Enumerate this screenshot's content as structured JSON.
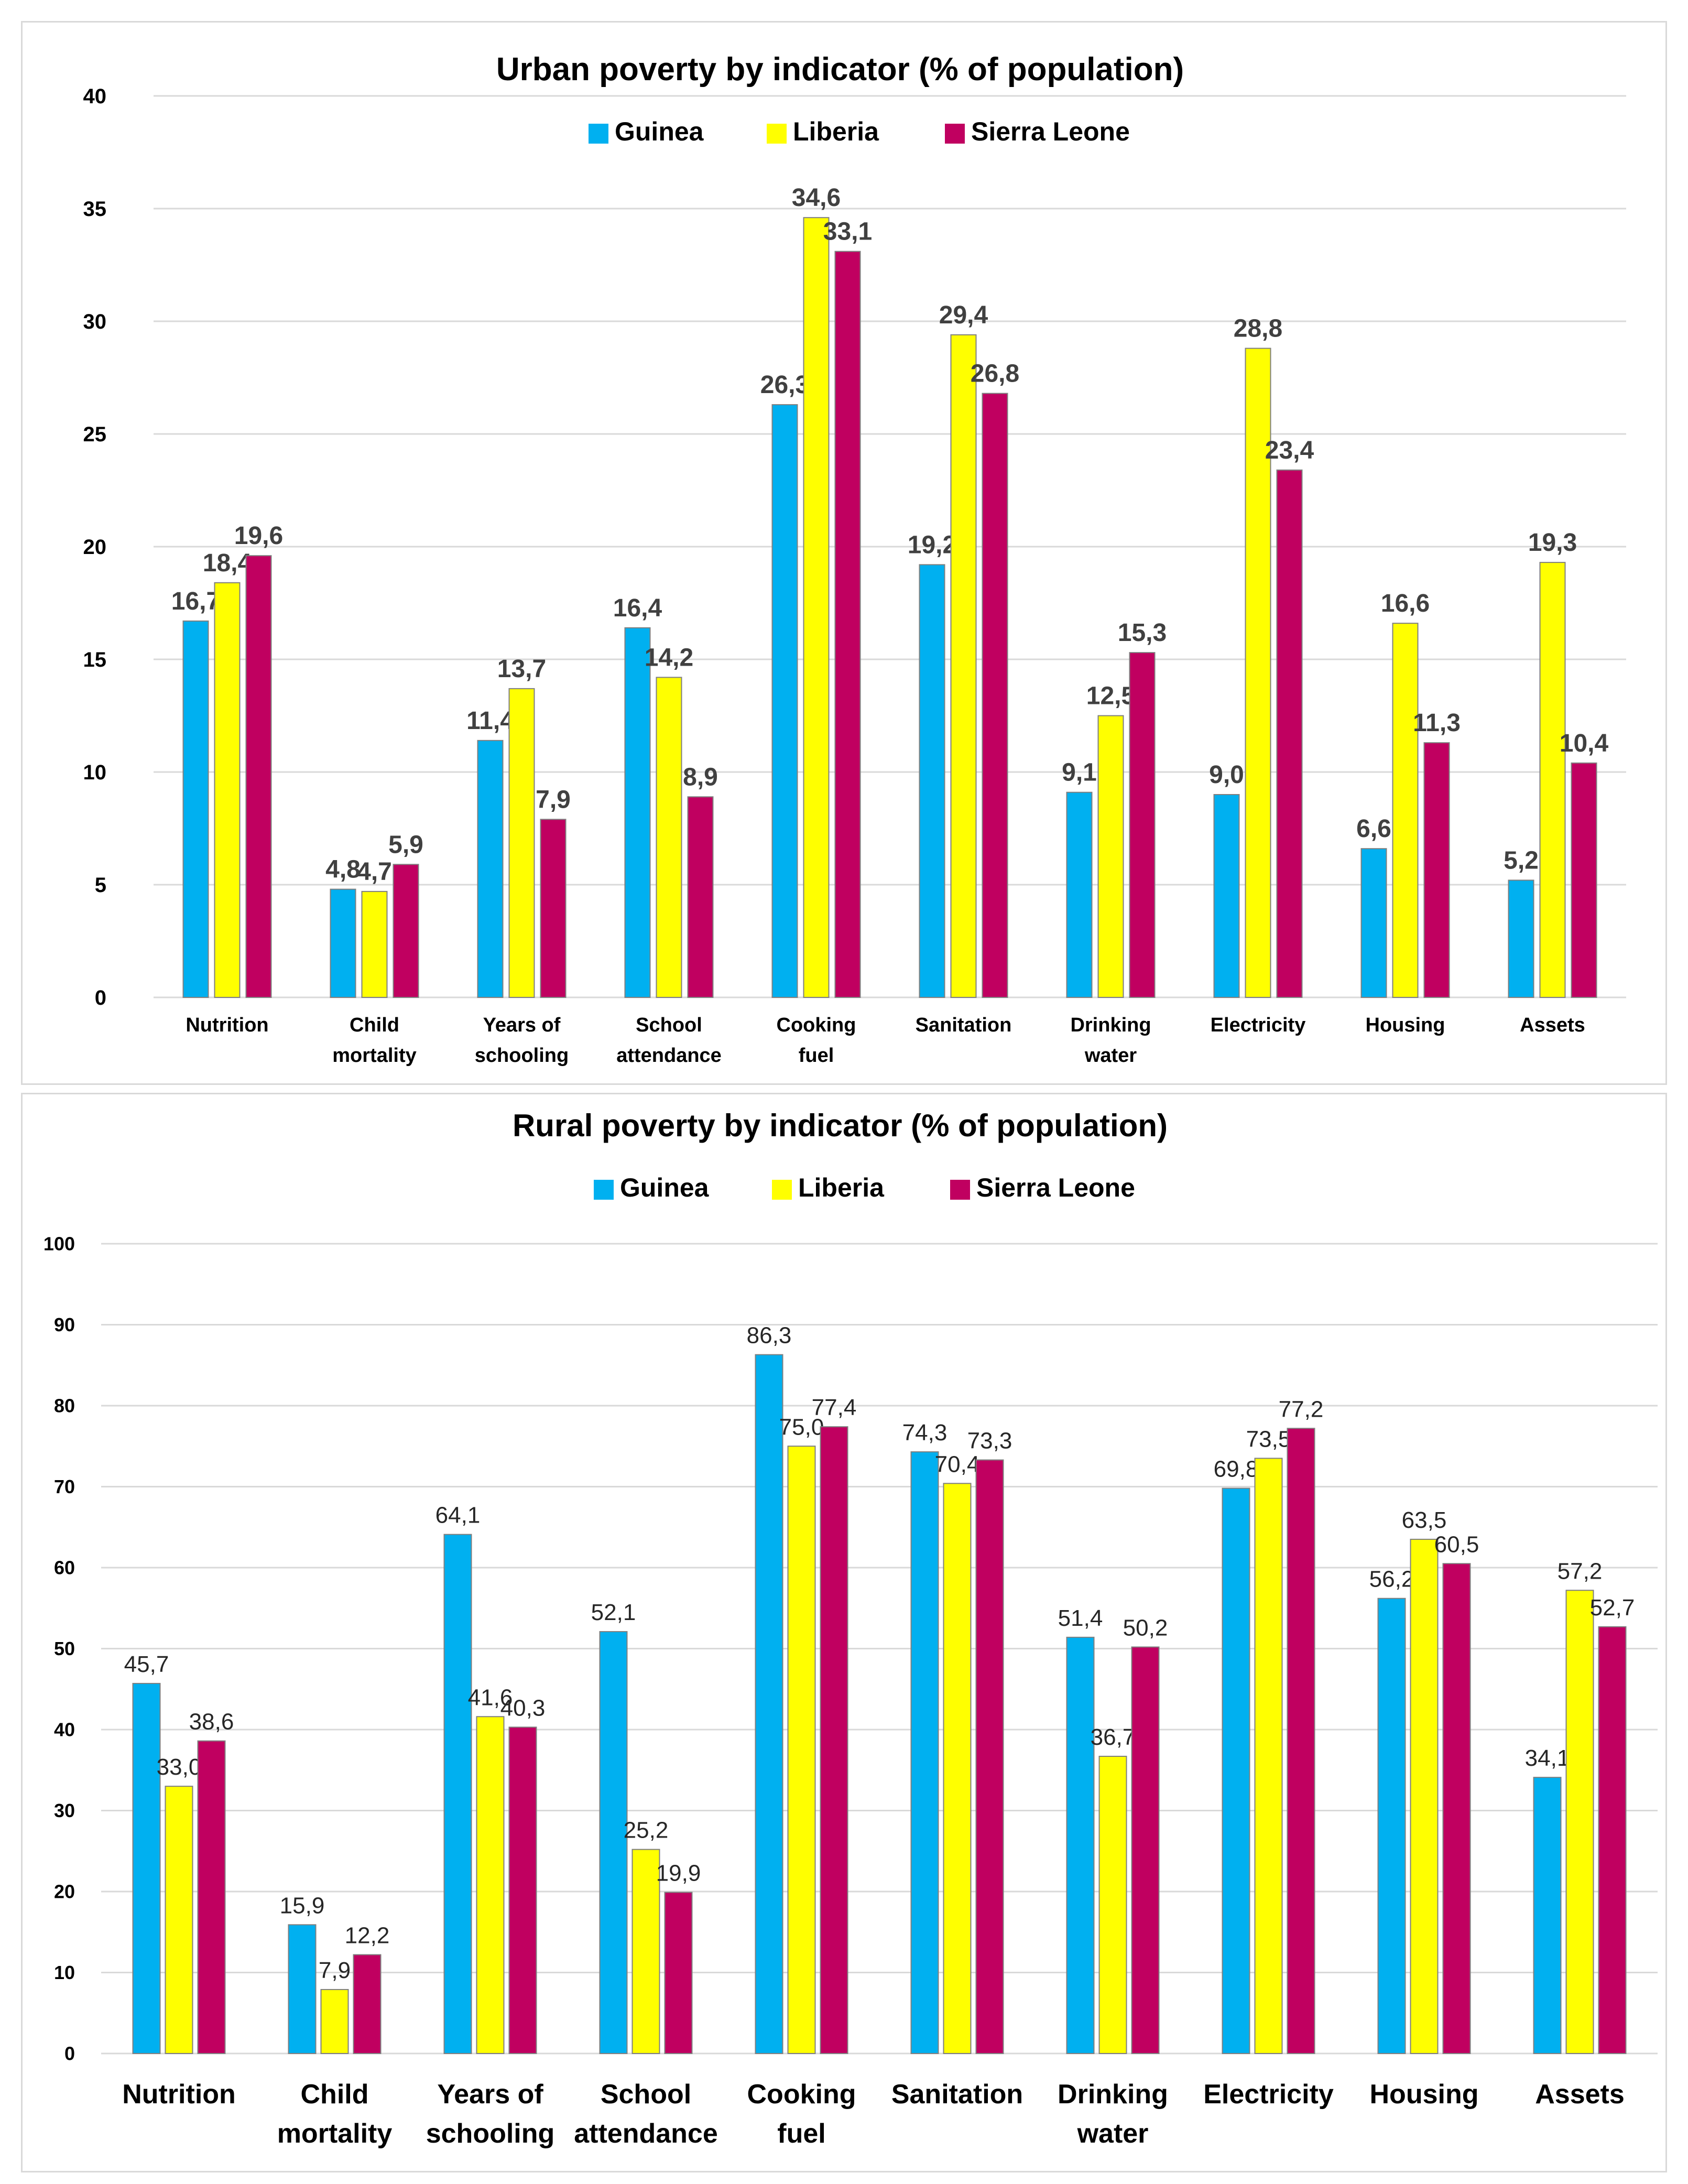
{
  "colors": {
    "guinea": "#00B0F0",
    "liberia": "#FFFF00",
    "sierra_leone": "#C00060"
  },
  "chart_data": [
    {
      "type": "bar",
      "title": "Urban poverty by indicator (% of population)",
      "categories": [
        [
          "Nutrition"
        ],
        [
          "Child",
          "mortality"
        ],
        [
          "Years of",
          "schooling"
        ],
        [
          "School",
          "attendance"
        ],
        [
          "Cooking",
          "fuel"
        ],
        [
          "Sanitation"
        ],
        [
          "Drinking",
          "water"
        ],
        [
          "Electricity"
        ],
        [
          "Housing"
        ],
        [
          "Assets"
        ]
      ],
      "series": [
        {
          "name": "Guinea",
          "values": [
            16.7,
            4.8,
            11.4,
            16.4,
            26.3,
            19.2,
            9.1,
            9.0,
            6.6,
            5.2
          ],
          "labels": [
            "16,7",
            "4,8",
            "11,4",
            "16,4",
            "26,3",
            "19,2",
            "9,1",
            "9,0",
            "6,6",
            "5,2"
          ]
        },
        {
          "name": "Liberia",
          "values": [
            18.4,
            4.7,
            13.7,
            14.2,
            34.6,
            29.4,
            12.5,
            28.8,
            16.6,
            19.3
          ],
          "labels": [
            "18,4",
            "4,7",
            "13,7",
            "14,2",
            "34,6",
            "29,4",
            "12,5",
            "28,8",
            "16,6",
            "19,3"
          ]
        },
        {
          "name": "Sierra Leone",
          "values": [
            19.6,
            5.9,
            7.9,
            8.9,
            33.1,
            26.8,
            15.3,
            23.4,
            11.3,
            10.4
          ],
          "labels": [
            "19,6",
            "5,9",
            "7,9",
            "8,9",
            "33,1",
            "26,8",
            "15,3",
            "23,4",
            "11,3",
            "10,4"
          ]
        }
      ],
      "ylim": [
        0,
        40
      ],
      "yticks": [
        0,
        5,
        10,
        15,
        20,
        25,
        30,
        35,
        40
      ],
      "grid": true,
      "legend": "top-center"
    },
    {
      "type": "bar",
      "title": "Rural poverty by indicator (% of population)",
      "categories": [
        [
          "Nutrition"
        ],
        [
          "Child",
          "mortality"
        ],
        [
          "Years of",
          "schooling"
        ],
        [
          "School",
          "attendance"
        ],
        [
          "Cooking",
          "fuel"
        ],
        [
          "Sanitation"
        ],
        [
          "Drinking",
          "water"
        ],
        [
          "Electricity"
        ],
        [
          "Housing"
        ],
        [
          "Assets"
        ]
      ],
      "series": [
        {
          "name": "Guinea",
          "values": [
            45.7,
            15.9,
            64.1,
            52.1,
            86.3,
            74.3,
            51.4,
            69.8,
            56.2,
            34.1
          ],
          "labels": [
            "45,7",
            "15,9",
            "64,1",
            "52,1",
            "86,3",
            "74,3",
            "51,4",
            "69,8",
            "56,2",
            "34,1"
          ]
        },
        {
          "name": "Liberia",
          "values": [
            33.0,
            7.9,
            41.6,
            25.2,
            75.0,
            70.4,
            36.7,
            73.5,
            63.5,
            57.2
          ],
          "labels": [
            "33,0",
            "7,9",
            "41,6",
            "25,2",
            "75,0",
            "70,4",
            "36,7",
            "73,5",
            "63,5",
            "57,2"
          ]
        },
        {
          "name": "Sierra Leone",
          "values": [
            38.6,
            12.2,
            40.3,
            19.9,
            77.4,
            73.3,
            50.2,
            77.2,
            60.5,
            52.7
          ],
          "labels": [
            "38,6",
            "12,2",
            "40,3",
            "19,9",
            "77,4",
            "73,3",
            "50,2",
            "77,2",
            "60,5",
            "52,7"
          ]
        }
      ],
      "ylim": [
        0,
        100
      ],
      "yticks": [
        0,
        10,
        20,
        30,
        40,
        50,
        60,
        70,
        80,
        90,
        100
      ],
      "grid": true,
      "legend": "top-center"
    }
  ]
}
